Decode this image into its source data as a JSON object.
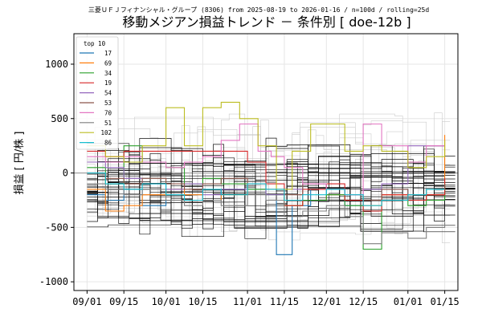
{
  "chart_data": {
    "type": "line",
    "suptitle": "三菱ＵＦＪフィナンシャル・グループ (8306) from 2025-08-19 to 2026-01-16 / n=100d / rolling=25d",
    "title": "移動メジアン損益トレンド － 条件別 [ doe-12b ]",
    "ylabel": "損益 [ 円/株 ]",
    "xlabel": "",
    "x_range": [
      "2025-08-27",
      "2026-01-20"
    ],
    "ylim": [
      -1080,
      1280
    ],
    "yticks": [
      1000,
      500,
      0,
      -500,
      -1000
    ],
    "xticks": [
      {
        "date": "2025-09-01",
        "label": "09/01"
      },
      {
        "date": "2025-09-15",
        "label": "09/15"
      },
      {
        "date": "2025-10-01",
        "label": "10/01"
      },
      {
        "date": "2025-10-15",
        "label": "10/15"
      },
      {
        "date": "2025-11-01",
        "label": "11/01"
      },
      {
        "date": "2025-11-15",
        "label": "11/15"
      },
      {
        "date": "2025-12-01",
        "label": "12/01"
      },
      {
        "date": "2025-12-15",
        "label": "12/15"
      },
      {
        "date": "2026-01-01",
        "label": "01/01"
      },
      {
        "date": "2026-01-15",
        "label": "01/15"
      }
    ],
    "grid": true,
    "legend": {
      "title": "top 10",
      "placement": "upper-left"
    },
    "series": [
      {
        "name": "17",
        "color": "#1f77b4",
        "x": [
          "2025-09-01",
          "2025-09-08",
          "2025-09-15",
          "2025-09-22",
          "2025-10-01",
          "2025-10-08",
          "2025-10-15",
          "2025-10-22",
          "2025-11-01",
          "2025-11-08",
          "2025-11-12",
          "2025-11-18",
          "2025-11-25",
          "2025-12-01",
          "2025-12-08",
          "2025-12-15",
          "2025-12-22",
          "2026-01-01",
          "2026-01-08",
          "2026-01-15"
        ],
        "y": [
          -200,
          -250,
          -150,
          -300,
          -250,
          -200,
          -250,
          -150,
          -150,
          -250,
          -750,
          -300,
          -150,
          -200,
          -300,
          -250,
          -150,
          -250,
          -200,
          -150
        ]
      },
      {
        "name": "69",
        "color": "#ff7f0e",
        "x": [
          "2025-09-01",
          "2025-09-08",
          "2025-09-15",
          "2025-09-22",
          "2025-10-01",
          "2025-10-08",
          "2025-10-15",
          "2025-10-22",
          "2025-11-01",
          "2025-11-08",
          "2025-11-15",
          "2025-11-22",
          "2025-12-01",
          "2025-12-08",
          "2025-12-15",
          "2025-12-22",
          "2026-01-01",
          "2026-01-08",
          "2026-01-15"
        ],
        "y": [
          -150,
          -350,
          -300,
          -200,
          -150,
          -200,
          -250,
          -200,
          -100,
          -150,
          -300,
          -250,
          -200,
          -250,
          -300,
          -200,
          -250,
          -200,
          350
        ]
      },
      {
        "name": "34",
        "color": "#2ca02c",
        "x": [
          "2025-09-01",
          "2025-09-08",
          "2025-09-15",
          "2025-09-22",
          "2025-10-01",
          "2025-10-08",
          "2025-10-15",
          "2025-10-22",
          "2025-11-01",
          "2025-11-08",
          "2025-11-15",
          "2025-11-22",
          "2025-12-01",
          "2025-12-08",
          "2025-12-15",
          "2025-12-22",
          "2026-01-01",
          "2026-01-08",
          "2026-01-15"
        ],
        "y": [
          50,
          -100,
          250,
          100,
          50,
          -100,
          -50,
          -100,
          -150,
          -200,
          -300,
          -250,
          -200,
          -300,
          -700,
          -250,
          -300,
          -250,
          -100
        ]
      },
      {
        "name": "19",
        "color": "#d62728",
        "x": [
          "2025-09-01",
          "2025-09-08",
          "2025-09-15",
          "2025-09-22",
          "2025-10-01",
          "2025-10-08",
          "2025-10-15",
          "2025-10-22",
          "2025-11-01",
          "2025-11-08",
          "2025-11-15",
          "2025-11-22",
          "2025-12-01",
          "2025-12-08",
          "2025-12-15",
          "2025-12-22",
          "2026-01-01",
          "2026-01-08",
          "2026-01-15"
        ],
        "y": [
          200,
          150,
          200,
          200,
          200,
          200,
          200,
          200,
          100,
          -100,
          -300,
          -150,
          -100,
          -250,
          -350,
          -200,
          -250,
          -200,
          -50
        ]
      },
      {
        "name": "54",
        "color": "#9467bd",
        "x": [
          "2025-09-01",
          "2025-09-08",
          "2025-09-15",
          "2025-09-22",
          "2025-10-01",
          "2025-10-08",
          "2025-10-15",
          "2025-10-22",
          "2025-11-01",
          "2025-11-08",
          "2025-11-15",
          "2025-11-22",
          "2025-12-01",
          "2025-12-08",
          "2025-12-15",
          "2025-12-22",
          "2026-01-01",
          "2026-01-08",
          "2026-01-15"
        ],
        "y": [
          100,
          50,
          -50,
          -100,
          -150,
          -100,
          -200,
          -150,
          -100,
          -200,
          -150,
          -100,
          -150,
          -200,
          -150,
          -100,
          250,
          250,
          250
        ]
      },
      {
        "name": "53",
        "color": "#8c564b",
        "x": [
          "2025-09-01",
          "2025-09-08",
          "2025-09-15",
          "2025-09-22",
          "2025-10-01",
          "2025-10-08",
          "2025-10-15",
          "2025-10-22",
          "2025-11-01",
          "2025-11-08",
          "2025-11-15",
          "2025-11-22",
          "2025-12-01",
          "2025-12-08",
          "2025-12-15",
          "2025-12-22",
          "2026-01-01",
          "2026-01-08",
          "2026-01-15"
        ],
        "y": [
          0,
          -50,
          -100,
          -50,
          -100,
          -150,
          -100,
          -50,
          -100,
          -150,
          -200,
          -100,
          -150,
          -200,
          -250,
          -150,
          -200,
          -150,
          -100
        ]
      },
      {
        "name": "70",
        "color": "#e377c2",
        "x": [
          "2025-09-01",
          "2025-09-08",
          "2025-09-15",
          "2025-09-22",
          "2025-10-01",
          "2025-10-08",
          "2025-10-15",
          "2025-10-22",
          "2025-10-29",
          "2025-11-05",
          "2025-11-10",
          "2025-11-15",
          "2025-11-22",
          "2025-12-01",
          "2025-12-08",
          "2025-12-15",
          "2025-12-22",
          "2026-01-01",
          "2026-01-08",
          "2026-01-15"
        ],
        "y": [
          150,
          100,
          150,
          100,
          50,
          100,
          150,
          300,
          450,
          200,
          150,
          50,
          -100,
          -150,
          -200,
          450,
          250,
          100,
          250,
          250
        ]
      },
      {
        "name": "51",
        "color": "#7f7f7f",
        "x": [
          "2025-09-01",
          "2025-09-08",
          "2025-09-15",
          "2025-09-22",
          "2025-10-01",
          "2025-10-08",
          "2025-10-15",
          "2025-10-22",
          "2025-11-01",
          "2025-11-08",
          "2025-11-15",
          "2025-11-22",
          "2025-12-01",
          "2025-12-08",
          "2025-12-15",
          "2025-12-22",
          "2026-01-01",
          "2026-01-08",
          "2026-01-15"
        ],
        "y": [
          -100,
          -150,
          -200,
          -150,
          -250,
          -300,
          -250,
          -300,
          -200,
          -250,
          -400,
          -350,
          -300,
          -400,
          -650,
          -550,
          -600,
          -500,
          -450
        ]
      },
      {
        "name": "102",
        "color": "#bcbd22",
        "x": [
          "2025-09-01",
          "2025-09-08",
          "2025-09-15",
          "2025-09-22",
          "2025-10-01",
          "2025-10-08",
          "2025-10-15",
          "2025-10-22",
          "2025-10-29",
          "2025-11-05",
          "2025-11-12",
          "2025-11-18",
          "2025-11-25",
          "2025-12-01",
          "2025-12-08",
          "2025-12-15",
          "2025-12-22",
          "2026-01-01",
          "2026-01-08",
          "2026-01-15"
        ],
        "y": [
          250,
          150,
          100,
          250,
          600,
          250,
          600,
          650,
          500,
          250,
          -150,
          200,
          450,
          450,
          200,
          250,
          200,
          50,
          150,
          300
        ]
      },
      {
        "name": "86",
        "color": "#17becf",
        "x": [
          "2025-09-01",
          "2025-09-08",
          "2025-09-15",
          "2025-09-22",
          "2025-10-01",
          "2025-10-08",
          "2025-10-15",
          "2025-10-22",
          "2025-11-01",
          "2025-11-08",
          "2025-11-15",
          "2025-11-22",
          "2025-12-01",
          "2025-12-08",
          "2025-12-15",
          "2025-12-22",
          "2026-01-01",
          "2026-01-08",
          "2026-01-15"
        ],
        "y": [
          0,
          -100,
          -150,
          -100,
          -200,
          -250,
          -150,
          -200,
          -100,
          -150,
          -250,
          -200,
          -150,
          -200,
          -300,
          -250,
          -200,
          -150,
          -150
        ]
      }
    ]
  }
}
